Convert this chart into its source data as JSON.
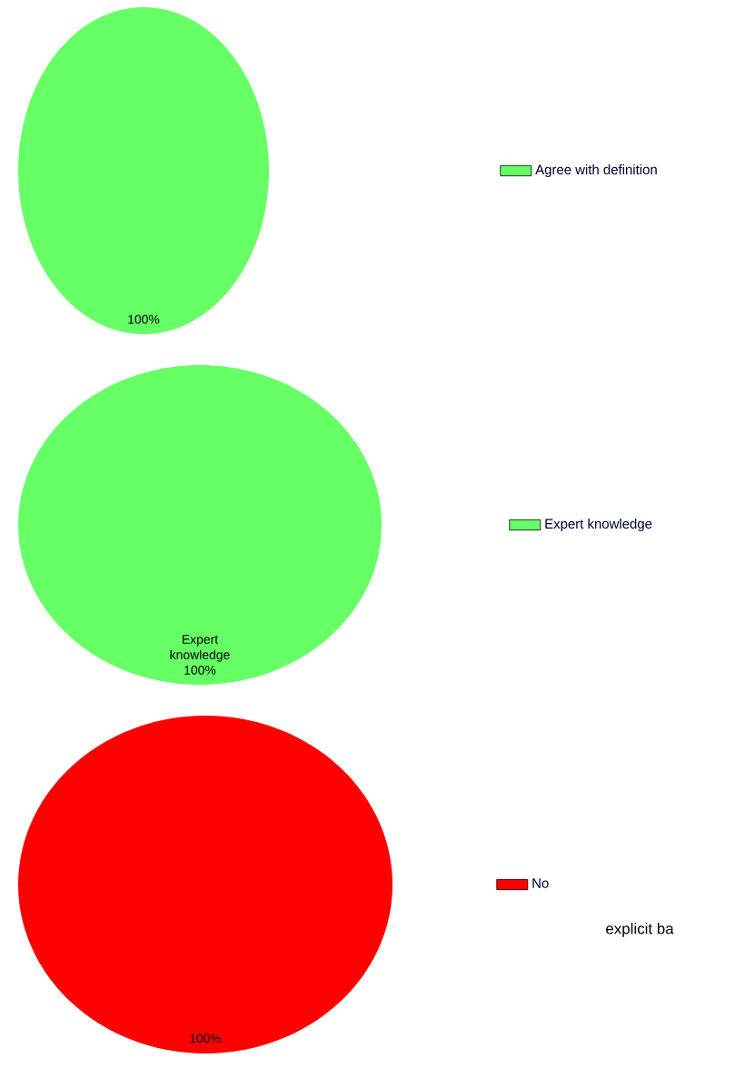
{
  "chart_data": [
    {
      "type": "pie",
      "categories": [
        "Agree with definition"
      ],
      "values": [
        100
      ],
      "colors": [
        "#66ff66"
      ],
      "value_labels": [
        "100%"
      ],
      "legend": "right"
    },
    {
      "type": "pie",
      "categories": [
        "Expert knowledge"
      ],
      "values": [
        100
      ],
      "colors": [
        "#66ff66"
      ],
      "value_labels": [
        "Expert knowledge 100%"
      ],
      "legend": "right"
    },
    {
      "type": "pie",
      "categories": [
        "No"
      ],
      "values": [
        100
      ],
      "colors": [
        "#ff0000"
      ],
      "value_labels": [
        "100%"
      ],
      "legend": "right",
      "annotations": [
        "explicit ba"
      ]
    }
  ]
}
